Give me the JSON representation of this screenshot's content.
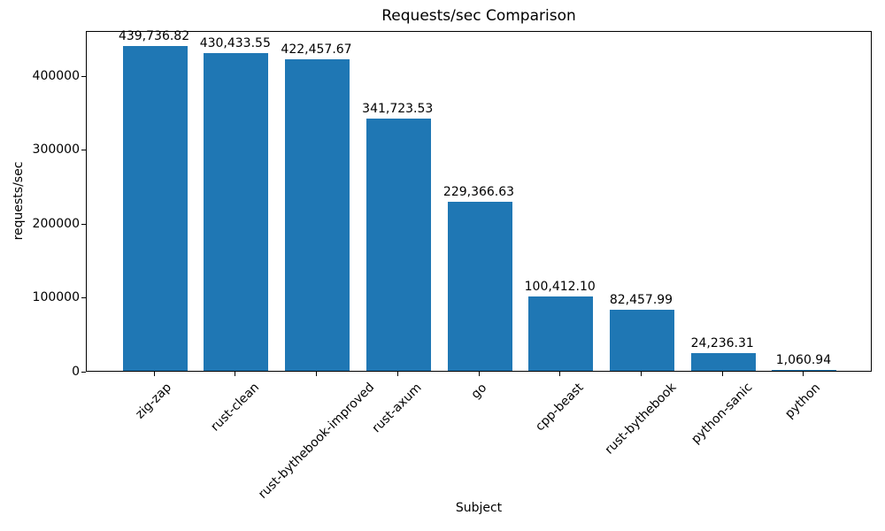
{
  "chart_data": {
    "type": "bar",
    "title": "Requests/sec Comparison",
    "xlabel": "Subject",
    "ylabel": "requests/sec",
    "categories": [
      "zig-zap",
      "rust-clean",
      "rust-bythebook-improved",
      "rust-axum",
      "go",
      "cpp-beast",
      "rust-bythebook",
      "python-sanic",
      "python"
    ],
    "values": [
      439736.82,
      430433.55,
      422457.67,
      341723.53,
      229366.63,
      100412.1,
      82457.99,
      24236.31,
      1060.94
    ],
    "value_labels": [
      "439,736.82",
      "430,433.55",
      "422,457.67",
      "341,723.53",
      "229,366.63",
      "100,412.10",
      "82,457.99",
      "24,236.31",
      "1,060.94"
    ],
    "yticks": [
      0,
      100000,
      200000,
      300000,
      400000
    ],
    "ytick_labels": [
      "0",
      "100000",
      "200000",
      "300000",
      "400000"
    ],
    "ylim": [
      0,
      461724
    ],
    "bar_color": "#1f77b4",
    "grid": false,
    "legend": "none",
    "x_tick_rotation_deg": 45
  }
}
